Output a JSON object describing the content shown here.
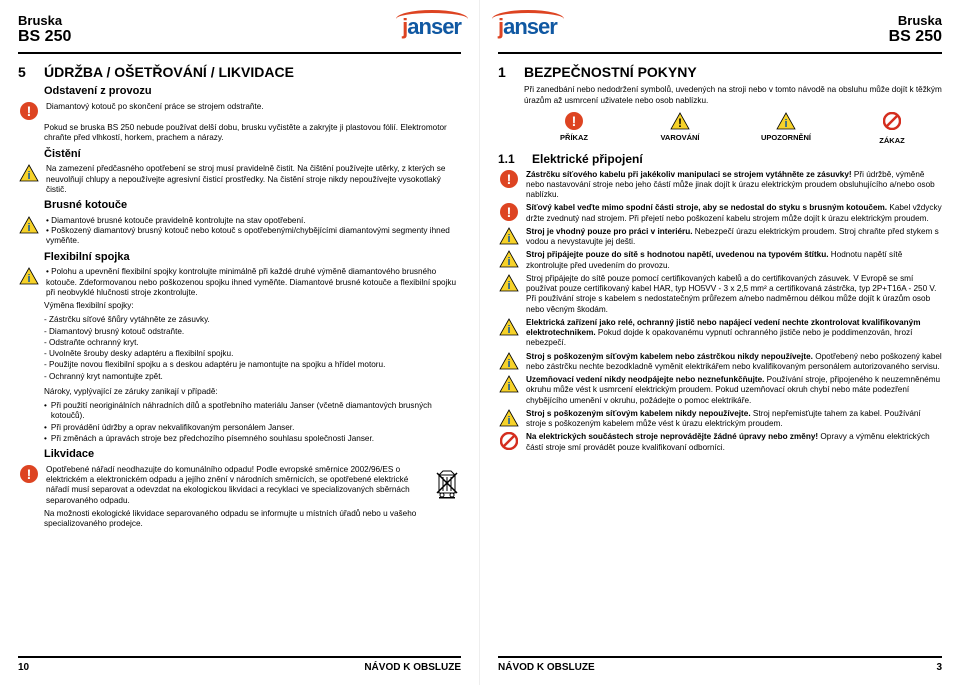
{
  "brand": {
    "name": "janser"
  },
  "colors": {
    "brand_blue": "#1058a2",
    "brand_red": "#d42e1f",
    "warn_yellow": "#f6d22a",
    "border": "#000000",
    "bg": "#ffffff"
  },
  "product": {
    "line1": "Bruska",
    "line2": "BS 250"
  },
  "footer_label": "NÁVOD K OBSLUZE",
  "left": {
    "page_num": "10",
    "sect_num": "5",
    "sect_title": "ÚDRŽBA / OŠETŘOVÁNÍ / LIKVIDACE",
    "sub1": "Odstavení z provozu",
    "p1": "Diamantový kotouč po skončení práce se strojem odstraňte.",
    "p2": "Pokud se bruska BS 250 nebude používat delší dobu, brusku vyčistěte a zakryjte ji plastovou fólií. Elektromotor chraňte před vlhkostí, horkem, prachem a nárazy.",
    "sub2": "Čistění",
    "p3": "Na zamezení předčasného opotřebení se stroj musí pravidelně čistit. Na čištění používejte utěrky, z kterých se neuvolňují chlupy a nepoužívejte agresivní čisticí prostředky. Na čistění stroje nikdy nepoužívejte vysokotlaký čistič.",
    "sub3": "Brusné kotouče",
    "b1": "Diamantové brusné kotouče pravidelně kontrolujte na stav opotřebení.",
    "b2": "Poškozený diamantový brusný kotouč nebo kotouč s opotřebenými/chybějícími diamantovými segmenty ihned vyměňte.",
    "sub4": "Flexibilní spojka",
    "b3": "Polohu a upevnění flexibilní spojky kontrolujte minimálně při každé druhé výměně diamantového brusného kotouče. Zdeformovanou nebo poškozenou spojku ihned vyměňte. Diamantové brusné kotouče a flexibilní spojku při neobvyklé hlučnosti stroje zkontrolujte.",
    "p4_lead": "Výměna flexibilní spojky:",
    "dashes": [
      "Zástrčku síťové šňůry vytáhněte ze zásuvky.",
      "Diamantový brusný kotouč odstraňte.",
      "Odstraňte ochranný kryt.",
      "Uvolněte šrouby desky adaptéru a flexibilní spojku.",
      "Použijte novou flexibilní spojku a s deskou adaptéru je namontujte na spojku a hřídel motoru.",
      "Ochranný kryt namontujte zpět."
    ],
    "p5_lead": "Nároky, vyplývající ze záruky zanikají v případě:",
    "claims": [
      "Při použití neoriginálních náhradních dílů a spotřebního materiálu Janser (včetně diamantových brusných kotoučů).",
      "Při provádění údržby a oprav nekvalifikovaným personálem Janser.",
      "Při změnách a úpravách stroje bez předchozího písemného souhlasu společnosti Janser."
    ],
    "sub5": "Likvidace",
    "p6": "Opotřebené nářadí neodhazujte do komunálního odpadu! Podle evropské směrnice 2002/96/ES o elektrickém a elektronickém odpadu a jejího znění v národních směrnicích, se opotřebené elektrické nářadí musí separovat a odevzdat na ekologickou likvidaci a recyklaci ve specializovaných sběrnách separovaného odpadu.",
    "p7": "Na možnosti ekologické likvidace separovaného odpadu se informujte u místních úřadů nebo u vašeho specializovaného prodejce."
  },
  "right": {
    "page_num": "3",
    "sect_num": "1",
    "sect_title": "BEZPEČNOSTNÍ POKYNY",
    "p1": "Při zanedbání nebo nedodržení symbolů, uvedených na stroji nebo v tomto návodě na obsluhu může dojít k těžkým úrazům až usmrcení uživatele nebo osob nablízku.",
    "icons": [
      {
        "label": "PŘÍKAZ",
        "type": "command"
      },
      {
        "label": "VAROVÁNÍ",
        "type": "warn-black"
      },
      {
        "label": "UPOZORNĚNÍ",
        "type": "warn-info"
      },
      {
        "label": "ZÁKAZ",
        "type": "prohibit"
      }
    ],
    "sub_num": "1.1",
    "sub_title": "Elektrické připojení",
    "items": [
      {
        "bold": "Zástrčku síťového kabelu při jakékoliv manipulaci se strojem vytáhněte ze zásuvky!",
        "rest": " Při údržbě, výměně nebo nastavování stroje nebo jeho částí může jinak dojít k úrazu elektrickým proudem obsluhujícího a/nebo osob nablízku.",
        "icon": "excl"
      },
      {
        "bold": "Síťový kabel veďte mimo spodní části stroje, aby se nedostal do styku s brusným kotoučem.",
        "rest": " Kabel vždycky držte zvednutý nad strojem. Při přejetí nebo poškození kabelu strojem může dojít k úrazu elektrickým proudem.",
        "icon": "excl"
      },
      {
        "bold": "Stroj je vhodný pouze pro práci v interiéru.",
        "rest": " Nebezpečí úrazu elektrickým proudem. Stroj chraňte před stykem s vodou a nevystavujte jej dešti.",
        "icon": "warn-info"
      },
      {
        "bold": "Stroj připájejte pouze do sítě s hodnotou napětí, uvedenou na typovém štítku.",
        "rest": " Hodnotu napětí sítě zkontrolujte před uvedením do provozu.",
        "icon": "warn-info"
      },
      {
        "bold": "",
        "rest": "Stroj připájejte do sítě pouze pomocí certifikovaných kabelů a do certifikovaných zásuvek. V Evropě se smí používat pouze certifikovaný kabel HAR, typ HO5VV - 3 x 2,5 mm² a certifikovaná zástrčka, typ 2P+T16A - 250 V. Při používání stroje s kabelem s nedostatečným průřezem a/nebo nadměrnou délkou může dojít k úrazům osob nebo věcným škodám.",
        "icon": "warn-info"
      },
      {
        "bold": "Elektrická zařízení jako relé, ochranný jistič nebo napájecí vedení nechte zkontrolovat kvalifikovaným elektrotechnikem.",
        "rest": " Pokud dojde k opakovanému vypnutí ochranného jističe nebo je poddimenzován, hrozí nebezpečí.",
        "icon": "warn-info"
      },
      {
        "bold": "Stroj s poškozeným síťovým kabelem nebo zástrčkou nikdy nepoužívejte.",
        "rest": " Opotřebený nebo poškozený kabel nebo zástrčku nechte bezodkladně vyměnit elektrikářem nebo kvalifikovaným personálem autorizovaného servisu.",
        "icon": "warn-info"
      },
      {
        "bold": "Uzemňovací vedení nikdy neodpájejte nebo neznefunkčňujte.",
        "rest": " Používání stroje, připojeného k neuzemněnému okruhu může vést k usmrcení elektrickým proudem. Pokud uzemňovací okruh chybí nebo máte podezření chybějícího umenění v okruhu, požádejte o pomoc elektrikáře.",
        "icon": "warn-info"
      },
      {
        "bold": "Stroj s poškozeným síťovým kabelem nikdy nepoužívejte.",
        "rest": " Stroj nepřemisťujte tahem za kabel. Používání stroje s poškozeným kabelem může vést k úrazu elektrickým proudem.",
        "icon": "warn-info"
      },
      {
        "bold": "Na elektrických součástech stroje neprovádějte žádné úpravy nebo změny!",
        "rest": " Opravy a výměnu elektrických částí stroje smí provádět pouze kvalifikovaní odborníci.",
        "icon": "prohibit"
      }
    ]
  }
}
